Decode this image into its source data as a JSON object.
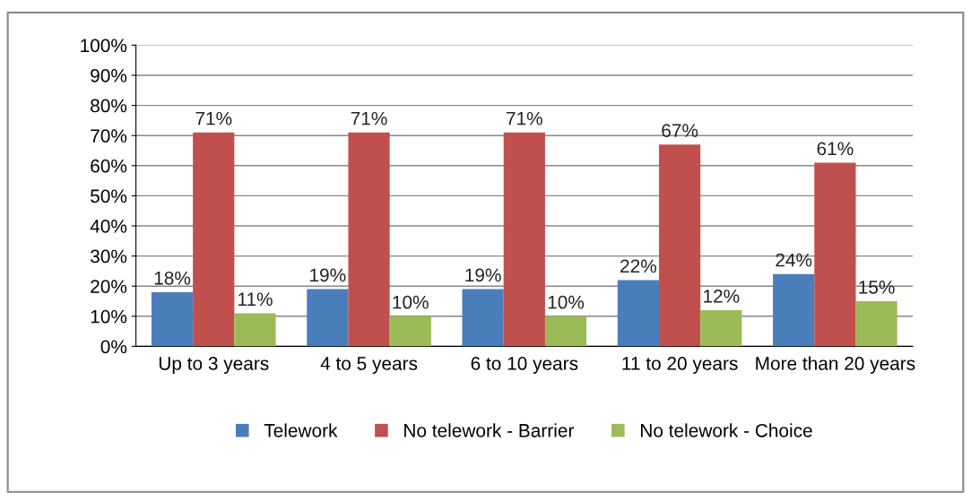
{
  "chart_data": {
    "type": "bar",
    "categories": [
      "Up to 3 years",
      "4 to 5 years",
      "6 to 10 years",
      "11 to 20 years",
      "More than 20 years"
    ],
    "series": [
      {
        "name": "Telework",
        "color": "#4a7ebb",
        "values": [
          18,
          19,
          19,
          22,
          24
        ]
      },
      {
        "name": "No telework - Barrier",
        "color": "#c0504d",
        "values": [
          71,
          71,
          71,
          67,
          61
        ]
      },
      {
        "name": "No telework - Choice",
        "color": "#9bbb59",
        "values": [
          11,
          10,
          10,
          12,
          15
        ]
      }
    ],
    "ylim": [
      0,
      100
    ],
    "yticks": [
      {
        "value": 0,
        "label": "0%"
      },
      {
        "value": 10,
        "label": "10%"
      },
      {
        "value": 20,
        "label": "20%"
      },
      {
        "value": 30,
        "label": "30%"
      },
      {
        "value": 40,
        "label": "40%"
      },
      {
        "value": 50,
        "label": "50%"
      },
      {
        "value": 60,
        "label": "60%"
      },
      {
        "value": 70,
        "label": "70%"
      },
      {
        "value": 80,
        "label": "80%"
      },
      {
        "value": 90,
        "label": "90%"
      },
      {
        "value": 100,
        "label": "100%"
      }
    ],
    "value_labels": [
      [
        "18%",
        "19%",
        "19%",
        "22%",
        "24%"
      ],
      [
        "71%",
        "71%",
        "71%",
        "67%",
        "61%"
      ],
      [
        "11%",
        "10%",
        "10%",
        "12%",
        "15%"
      ]
    ],
    "grid": "y",
    "legend": "bottom"
  }
}
